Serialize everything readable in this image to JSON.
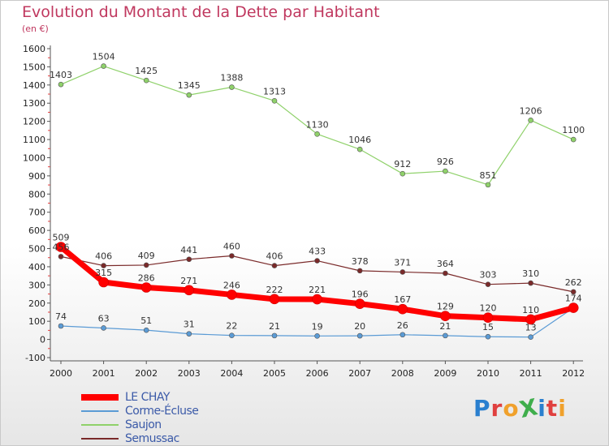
{
  "title": "Evolution du Montant de la Dette par Habitant",
  "subtitle": "(en €)",
  "logo": {
    "text": "ProXiti",
    "colors": [
      "#2a7fcf",
      "#e0403f",
      "#f0a12c",
      "#3fae4c",
      "#2a7fcf",
      "#e0403f",
      "#f0a12c"
    ]
  },
  "chart_data": {
    "type": "line",
    "title": "Evolution du Montant de la Dette par Habitant",
    "subtitle": "(en €)",
    "categories": [
      "2000",
      "2001",
      "2002",
      "2003",
      "2004",
      "2005",
      "2006",
      "2007",
      "2008",
      "2009",
      "2010",
      "2011",
      "2012"
    ],
    "ylim": [
      -100,
      1600
    ],
    "yticks": [
      "-100",
      "0",
      "100",
      "200",
      "300",
      "400",
      "500",
      "600",
      "700",
      "800",
      "900",
      "1000",
      "1100",
      "1200",
      "1300",
      "1400",
      "1500",
      "1600"
    ],
    "grid": false,
    "legend_position": "bottom-left",
    "series": [
      {
        "name": "LE CHAY",
        "color": "#ff0000",
        "values": [
          509,
          315,
          286,
          271,
          246,
          222,
          221,
          196,
          167,
          129,
          120,
          110,
          174
        ],
        "labels": [
          "509",
          "315",
          "286",
          "271",
          "246",
          "222",
          "221",
          "196",
          "167",
          "129",
          "120",
          "110",
          "174"
        ]
      },
      {
        "name": "Corme-Écluse",
        "color": "#5b9bd5",
        "values": [
          74,
          63,
          51,
          31,
          22,
          21,
          19,
          20,
          26,
          21,
          15,
          13,
          174
        ],
        "labels": [
          "74",
          "63",
          "51",
          "31",
          "22",
          "21",
          "19",
          "20",
          "26",
          "21",
          "15",
          "13",
          ""
        ]
      },
      {
        "name": "Saujon",
        "color": "#8fd16a",
        "values": [
          1403,
          1504,
          1425,
          1345,
          1388,
          1313,
          1130,
          1046,
          912,
          926,
          851,
          1206,
          1100
        ],
        "labels": [
          "1403",
          "1504",
          "1425",
          "1345",
          "1388",
          "1313",
          "1130",
          "1046",
          "912",
          "926",
          "851",
          "1206",
          "1100"
        ]
      },
      {
        "name": "Semussac",
        "color": "#7a2a2a",
        "values": [
          456,
          406,
          409,
          441,
          460,
          406,
          433,
          378,
          371,
          364,
          303,
          310,
          262
        ],
        "labels": [
          "456",
          "406",
          "409",
          "441",
          "460",
          "406",
          "433",
          "378",
          "371",
          "364",
          "303",
          "310",
          "262"
        ]
      }
    ]
  }
}
